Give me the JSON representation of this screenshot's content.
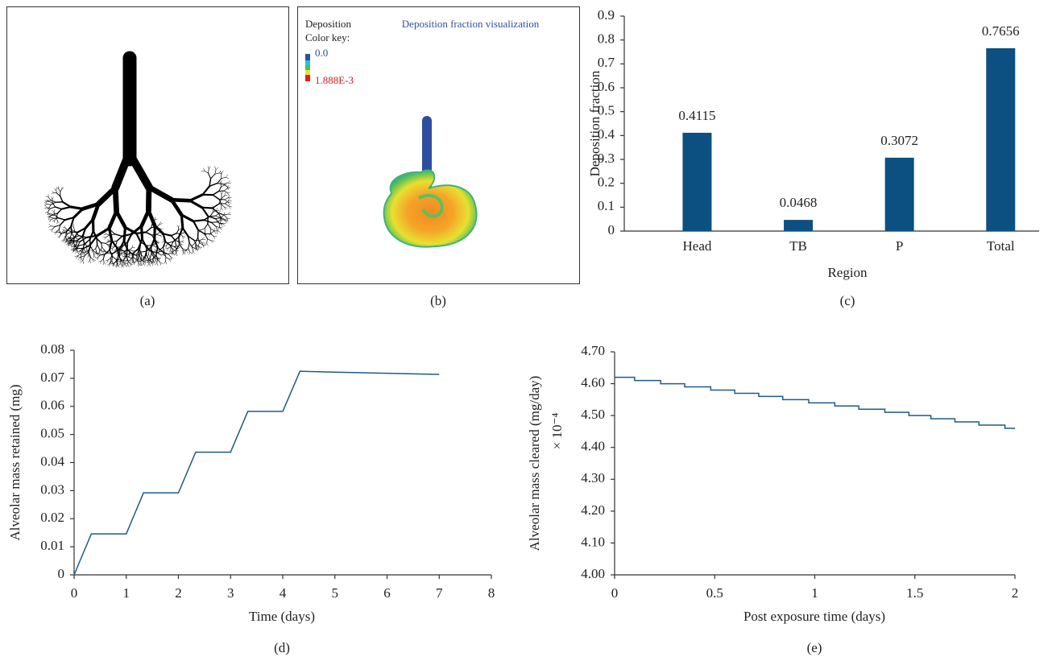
{
  "images": [
    {
      "caption": "(a)"
    },
    {
      "caption": "(b)",
      "title": "Deposition fraction visualization",
      "key_title": [
        "Deposition",
        "Color key:"
      ],
      "key_labels": [
        "0.0",
        "1.888E-3"
      ]
    }
  ],
  "chart_data": [
    {
      "type": "bar",
      "caption": "(c)",
      "xlabel": "Region",
      "ylabel": "Deposition fraction",
      "categories": [
        "Head",
        "TB",
        "P",
        "Total"
      ],
      "values": [
        0.4115,
        0.0468,
        0.3072,
        0.7656
      ],
      "color": "#0b5080",
      "ylim": [
        0,
        0.9
      ],
      "yticks": [
        0,
        0.1,
        0.2,
        0.3,
        0.4,
        0.5,
        0.6,
        0.7,
        0.8,
        0.9
      ]
    },
    {
      "type": "line",
      "caption": "(d)",
      "xlabel": "Time (days)",
      "ylabel": "Alveolar mass retained (mg)",
      "x": [
        0,
        0.33,
        1,
        1.33,
        2,
        2.33,
        3,
        3.33,
        4,
        4.33,
        5,
        6,
        7
      ],
      "values": [
        0,
        0.0146,
        0.0146,
        0.0292,
        0.0292,
        0.0437,
        0.0437,
        0.0582,
        0.0582,
        0.0725,
        0.0722,
        0.0718,
        0.0714
      ],
      "color": "#1f5a8a",
      "xlim": [
        0,
        8
      ],
      "xticks": [
        0,
        1,
        2,
        3,
        4,
        5,
        6,
        7,
        8
      ],
      "ylim": [
        0,
        0.08
      ],
      "yticks": [
        0,
        0.01,
        0.02,
        0.03,
        0.04,
        0.05,
        0.06,
        0.07,
        0.08
      ]
    },
    {
      "type": "line",
      "caption": "(e)",
      "xlabel": "Post exposure time (days)",
      "ylabel": "Alveolar mass cleared (mg/day)",
      "ylabel_unit": "× 10⁻⁴",
      "x": [
        0,
        0.1,
        0.1,
        0.23,
        0.23,
        0.35,
        0.35,
        0.48,
        0.48,
        0.6,
        0.6,
        0.72,
        0.72,
        0.84,
        0.84,
        0.97,
        0.97,
        1.1,
        1.1,
        1.22,
        1.22,
        1.35,
        1.35,
        1.47,
        1.47,
        1.58,
        1.58,
        1.7,
        1.7,
        1.82,
        1.82,
        1.95,
        1.95,
        2
      ],
      "values": [
        4.62,
        4.62,
        4.61,
        4.61,
        4.6,
        4.6,
        4.59,
        4.59,
        4.58,
        4.58,
        4.57,
        4.57,
        4.56,
        4.56,
        4.55,
        4.55,
        4.54,
        4.54,
        4.53,
        4.53,
        4.52,
        4.52,
        4.51,
        4.51,
        4.5,
        4.5,
        4.49,
        4.49,
        4.48,
        4.48,
        4.47,
        4.47,
        4.46,
        4.46
      ],
      "color": "#1f5a8a",
      "xlim": [
        0,
        2
      ],
      "xticks": [
        0,
        0.5,
        1,
        1.5,
        2
      ],
      "ylim": [
        4,
        4.7
      ],
      "yticks": [
        {
          "value": 4,
          "label": "4.00"
        },
        {
          "value": 4.1,
          "label": "4.10"
        },
        {
          "value": 4.2,
          "label": "4.20"
        },
        {
          "value": 4.3,
          "label": "4.30"
        },
        {
          "value": 4.4,
          "label": "4.40"
        },
        {
          "value": 4.5,
          "label": "4.50"
        },
        {
          "value": 4.6,
          "label": "4.60"
        },
        {
          "value": 4.7,
          "label": "4.70"
        }
      ]
    }
  ]
}
